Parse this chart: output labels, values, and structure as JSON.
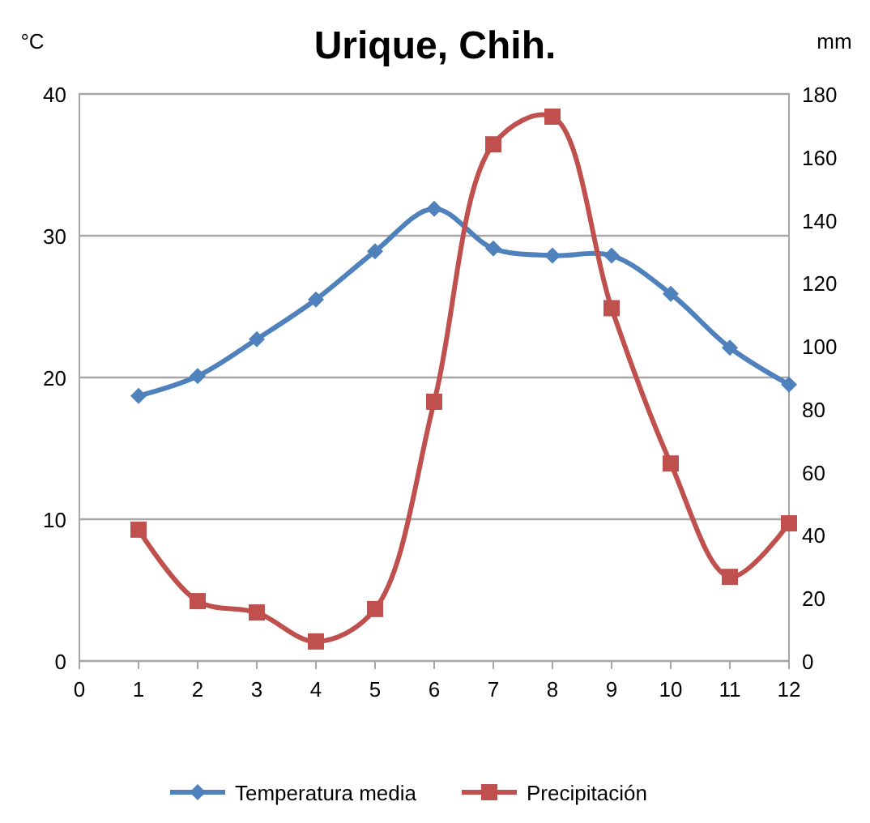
{
  "chart_data": {
    "type": "line",
    "title": "Urique, Chih.",
    "ylabel": "°C",
    "y2label": "mm",
    "x": [
      1,
      2,
      3,
      4,
      5,
      6,
      7,
      8,
      9,
      10,
      11,
      12
    ],
    "series": [
      {
        "name": "Temperatura media",
        "color": "#4f81bd",
        "marker": "diamond",
        "values": [
          18.7,
          20.1,
          22.7,
          25.5,
          28.9,
          31.9,
          29.1,
          28.6,
          28.6,
          25.9,
          22.1,
          19.5
        ]
      },
      {
        "name": "Precipitación",
        "color": "#c0504d",
        "marker": "square",
        "axis": "y2",
        "values": [
          41.7,
          19,
          15.4,
          6.2,
          16.5,
          82.3,
          164,
          172.8,
          112,
          62.7,
          26.7,
          43.7
        ]
      }
    ],
    "xlim": [
      0,
      12
    ],
    "xticks": [
      0,
      1,
      2,
      3,
      4,
      5,
      6,
      7,
      8,
      9,
      10,
      11,
      12
    ],
    "ylim": [
      0,
      40
    ],
    "yticks": [
      0,
      10,
      20,
      30,
      40
    ],
    "y2lim": [
      0,
      180
    ],
    "y2ticks": [
      0,
      20,
      40,
      60,
      80,
      100,
      120,
      140,
      160,
      180
    ],
    "grid": "y",
    "legend": "bottom",
    "line_style": "solid"
  }
}
